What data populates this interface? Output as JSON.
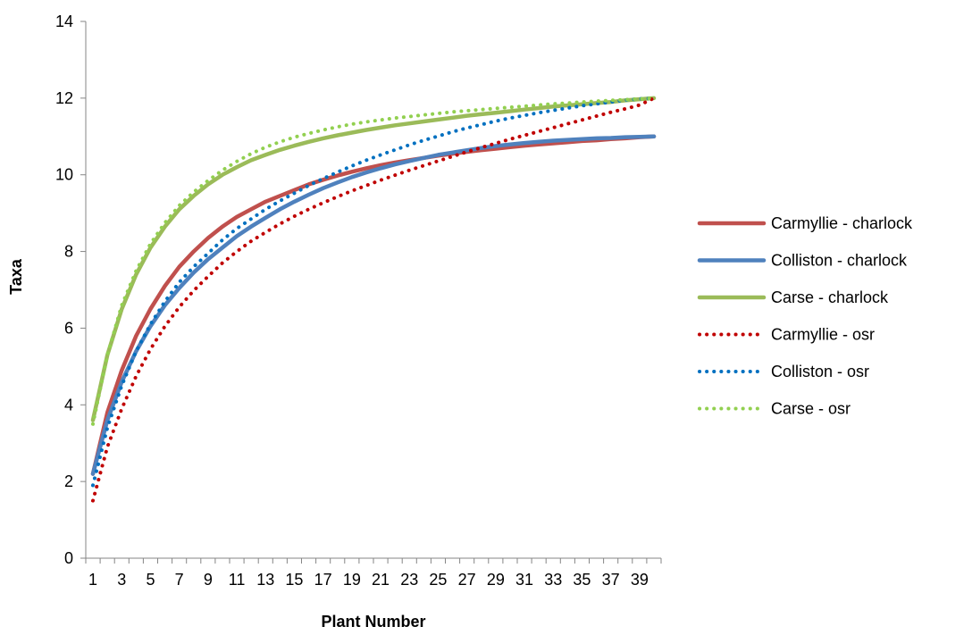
{
  "chart_data": {
    "type": "line",
    "title": "",
    "xlabel": "Plant Number",
    "ylabel": "Taxa",
    "xlim": [
      1,
      40
    ],
    "ylim": [
      0,
      14
    ],
    "y_ticks": [
      0,
      2,
      4,
      6,
      8,
      10,
      12,
      14
    ],
    "x_tick_labels": [
      "1",
      "3",
      "5",
      "7",
      "9",
      "11",
      "13",
      "15",
      "17",
      "19",
      "21",
      "23",
      "25",
      "27",
      "29",
      "31",
      "33",
      "35",
      "37",
      "39"
    ],
    "grid": false,
    "legend_position": "right",
    "x": [
      1,
      2,
      3,
      4,
      5,
      6,
      7,
      8,
      9,
      10,
      11,
      12,
      13,
      14,
      15,
      16,
      17,
      18,
      19,
      20,
      21,
      22,
      23,
      24,
      25,
      26,
      27,
      28,
      29,
      30,
      31,
      32,
      33,
      34,
      35,
      36,
      37,
      38,
      39,
      40
    ],
    "series": [
      {
        "name": "Carmyllie - charlock",
        "color": "#c0504d",
        "style": "solid",
        "values": [
          2.2,
          3.8,
          4.9,
          5.8,
          6.5,
          7.1,
          7.6,
          8.0,
          8.35,
          8.65,
          8.9,
          9.1,
          9.3,
          9.45,
          9.6,
          9.75,
          9.87,
          9.98,
          10.08,
          10.17,
          10.25,
          10.32,
          10.38,
          10.44,
          10.5,
          10.55,
          10.6,
          10.64,
          10.68,
          10.72,
          10.76,
          10.79,
          10.82,
          10.85,
          10.88,
          10.9,
          10.93,
          10.95,
          10.98,
          11.0
        ]
      },
      {
        "name": "Colliston - charlock",
        "color": "#4f81bd",
        "style": "solid",
        "values": [
          2.2,
          3.6,
          4.6,
          5.4,
          6.05,
          6.6,
          7.05,
          7.45,
          7.8,
          8.1,
          8.4,
          8.65,
          8.88,
          9.1,
          9.3,
          9.48,
          9.65,
          9.8,
          9.94,
          10.06,
          10.17,
          10.27,
          10.36,
          10.44,
          10.52,
          10.58,
          10.64,
          10.7,
          10.75,
          10.79,
          10.83,
          10.86,
          10.89,
          10.91,
          10.93,
          10.95,
          10.96,
          10.98,
          10.99,
          11.0
        ]
      },
      {
        "name": "Carse - charlock",
        "color": "#9bbb59",
        "style": "solid",
        "values": [
          3.6,
          5.3,
          6.5,
          7.4,
          8.1,
          8.65,
          9.1,
          9.45,
          9.75,
          10.0,
          10.2,
          10.38,
          10.52,
          10.65,
          10.76,
          10.86,
          10.95,
          11.03,
          11.1,
          11.17,
          11.23,
          11.29,
          11.34,
          11.39,
          11.44,
          11.49,
          11.54,
          11.58,
          11.62,
          11.66,
          11.7,
          11.74,
          11.78,
          11.81,
          11.84,
          11.87,
          11.9,
          11.94,
          11.97,
          12.0
        ]
      },
      {
        "name": "Carmyllie - osr",
        "color": "#c00000",
        "style": "dotted",
        "values": [
          1.5,
          2.9,
          3.9,
          4.75,
          5.45,
          6.05,
          6.55,
          6.98,
          7.35,
          7.7,
          8.0,
          8.27,
          8.5,
          8.72,
          8.92,
          9.1,
          9.27,
          9.43,
          9.58,
          9.72,
          9.86,
          9.99,
          10.12,
          10.24,
          10.36,
          10.48,
          10.6,
          10.71,
          10.82,
          10.93,
          11.03,
          11.13,
          11.23,
          11.33,
          11.43,
          11.53,
          11.63,
          11.72,
          11.82,
          12.0
        ]
      },
      {
        "name": "Colliston - osr",
        "color": "#0070c0",
        "style": "dotted",
        "values": [
          1.9,
          3.4,
          4.5,
          5.4,
          6.1,
          6.7,
          7.2,
          7.6,
          7.95,
          8.3,
          8.6,
          8.85,
          9.1,
          9.32,
          9.52,
          9.72,
          9.9,
          10.07,
          10.23,
          10.38,
          10.52,
          10.65,
          10.78,
          10.9,
          11.01,
          11.12,
          11.22,
          11.31,
          11.4,
          11.48,
          11.55,
          11.62,
          11.68,
          11.74,
          11.8,
          11.85,
          11.9,
          11.95,
          11.98,
          12.0
        ]
      },
      {
        "name": "Carse - osr",
        "color": "#92d050",
        "style": "dotted",
        "values": [
          3.5,
          5.3,
          6.6,
          7.5,
          8.2,
          8.75,
          9.2,
          9.55,
          9.85,
          10.12,
          10.35,
          10.55,
          10.72,
          10.86,
          10.98,
          11.08,
          11.17,
          11.25,
          11.32,
          11.38,
          11.43,
          11.48,
          11.52,
          11.56,
          11.6,
          11.64,
          11.67,
          11.7,
          11.73,
          11.76,
          11.79,
          11.82,
          11.85,
          11.87,
          11.9,
          11.92,
          11.94,
          11.96,
          11.98,
          12.0
        ]
      }
    ]
  }
}
